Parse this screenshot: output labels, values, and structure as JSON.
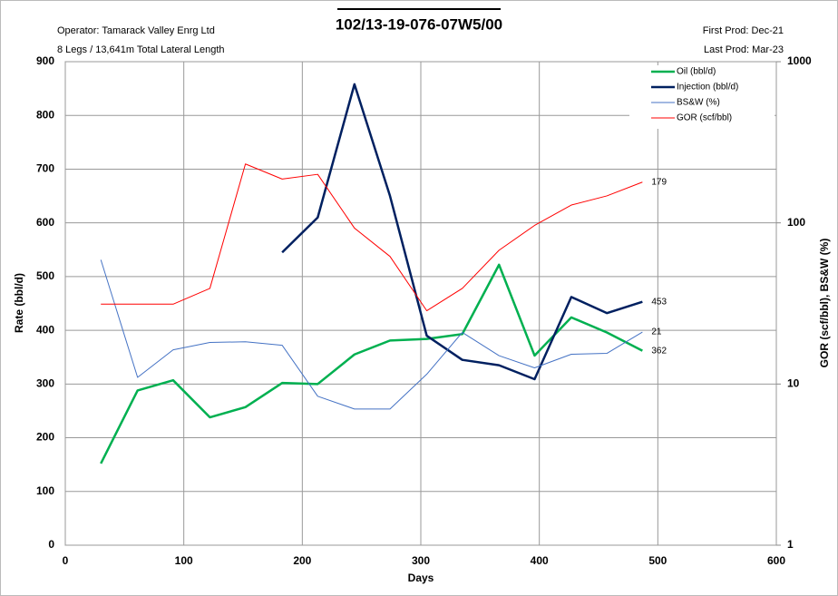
{
  "chart_data": {
    "type": "line",
    "title": "102/13-19-076-07W5/00",
    "annotations": [
      "Operator: Tamarack Valley Enrg Ltd",
      "8 Legs / 13,641m Total Lateral Length",
      "First Prod:  Dec-21",
      "Last Prod:  Mar-23"
    ],
    "x_label": "Days",
    "y_label": "Rate (bbl/d)",
    "y2_label": "GOR (scf/bbl), BS&W (%)",
    "x": [
      30,
      61,
      91,
      122,
      152,
      183,
      213,
      244,
      274,
      305,
      335,
      366,
      396,
      427,
      457,
      487
    ],
    "xlim": [
      0,
      600
    ],
    "xticks": [
      0,
      100,
      200,
      300,
      400,
      500,
      600
    ],
    "ylim": [
      0,
      900
    ],
    "yticks": [
      0,
      100,
      200,
      300,
      400,
      500,
      600,
      700,
      800,
      900
    ],
    "y2lim": [
      1,
      1000
    ],
    "y2ticks": [
      1,
      10,
      100,
      1000
    ],
    "y2_log": true,
    "grid": true,
    "legend": "top-right",
    "series": [
      {
        "name": "Oil (bbl/d)",
        "color": "#00b050",
        "width": 2.5,
        "values": [
          152,
          288,
          307,
          238,
          257,
          302,
          300,
          355,
          381,
          384,
          393,
          522,
          353,
          424,
          396,
          362
        ]
      },
      {
        "name": "Injection (bbl/d)",
        "color": "#002060",
        "width": 2.5,
        "values": [
          null,
          null,
          null,
          null,
          null,
          545,
          610,
          858,
          650,
          390,
          345,
          335,
          309,
          462,
          432,
          453
        ]
      },
      {
        "name": "BS&W (%)",
        "color": "#4472c4",
        "width": 1,
        "axis": "y2",
        "values": [
          59,
          11,
          16.3,
          18.1,
          18.3,
          17.4,
          8.4,
          7,
          7,
          11.5,
          20.9,
          15,
          12.6,
          15.3,
          15.5,
          21
        ]
      },
      {
        "name": "GOR (scf/bbl)",
        "color": "#ff0000",
        "width": 1,
        "axis": "y2",
        "values": [
          31.3,
          31.3,
          31.3,
          39.2,
          232,
          187,
          200,
          92.8,
          61.9,
          28.5,
          39.2,
          67.6,
          96.4,
          129,
          147,
          179
        ]
      }
    ]
  }
}
